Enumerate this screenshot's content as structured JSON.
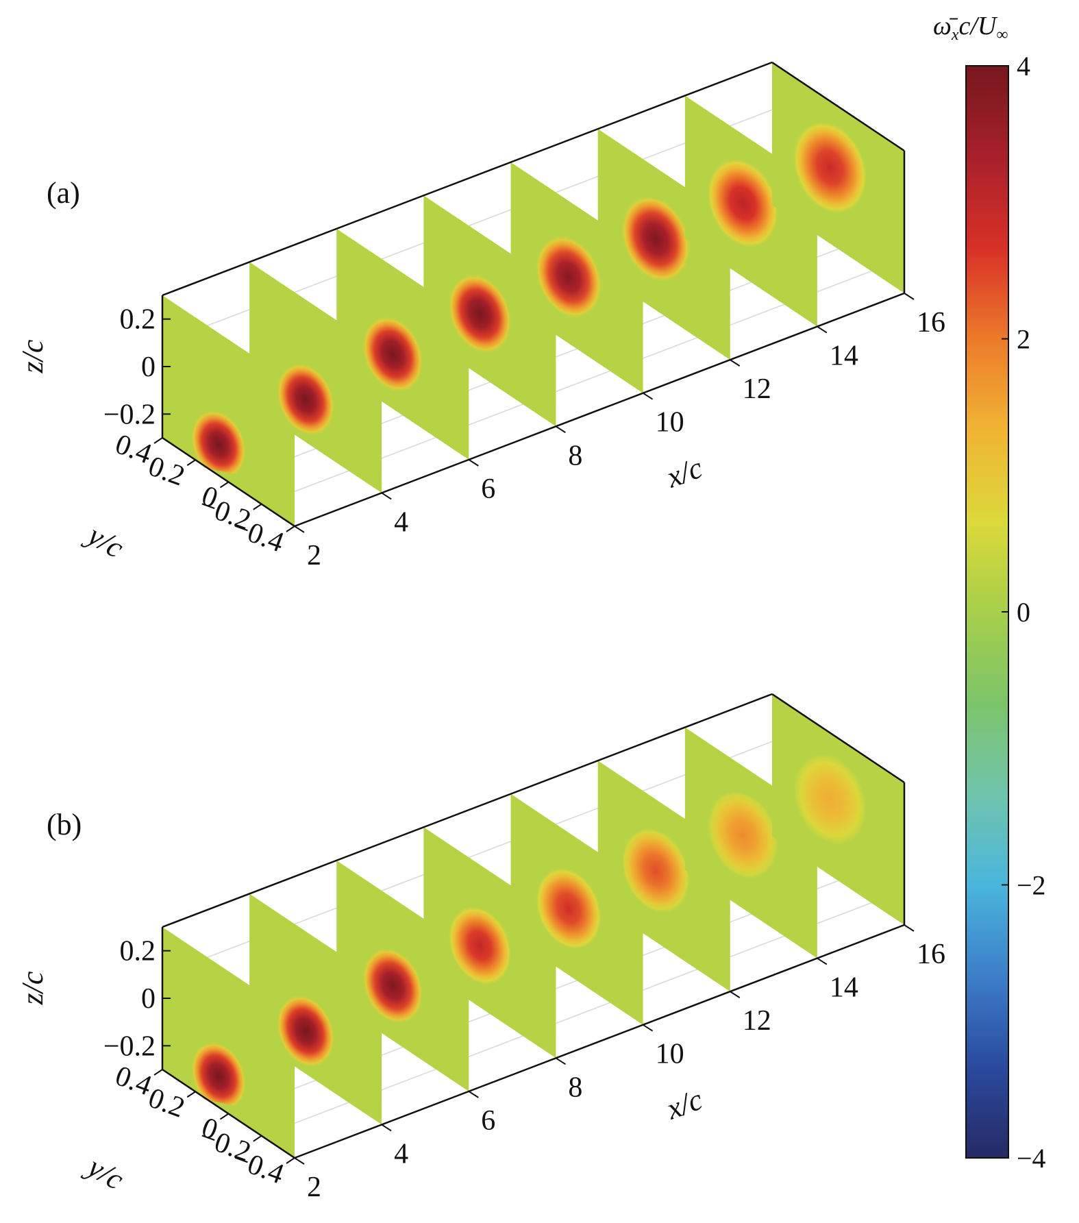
{
  "colorbar": {
    "label_main": "ω̄",
    "label_sub": "x",
    "label_rest": "c/U",
    "label_inf": "∞",
    "min": -4,
    "max": 4,
    "ticks": [
      "4",
      "2",
      "0",
      "−2",
      "−4"
    ],
    "tick_values": [
      4,
      2,
      0,
      -2,
      -4
    ],
    "colormap": [
      "#262a64",
      "#2a4a9e",
      "#3d7ec8",
      "#4ab6dc",
      "#70c4ac",
      "#7cc46a",
      "#a6cf4a",
      "#dcd83a",
      "#f0b434",
      "#ec7a2a",
      "#d83028",
      "#a8202a",
      "#76181e"
    ]
  },
  "chart_data": [
    {
      "type": "heatmap",
      "panel_label": "(a)",
      "xlabel": "x/c",
      "ylabel": "y/c",
      "zlabel": "z/c",
      "x_ticks": [
        "2",
        "4",
        "6",
        "8",
        "10",
        "12",
        "14",
        "16"
      ],
      "x_range": [
        2,
        16
      ],
      "y_ticks": [
        "0.4",
        "0.2",
        "0",
        "−0.2",
        "−0.4"
      ],
      "y_range": [
        -0.4,
        0.4
      ],
      "z_ticks": [
        "0.2",
        "0",
        "−0.2"
      ],
      "z_range": [
        -0.3,
        0.3
      ],
      "slices": [
        {
          "x": 2,
          "peak": 4.0,
          "vortex_y": 0.06,
          "vortex_z": -0.17
        },
        {
          "x": 4,
          "peak": 4.0,
          "vortex_y": 0.06,
          "vortex_z": -0.12
        },
        {
          "x": 6,
          "peak": 4.0,
          "vortex_y": 0.06,
          "vortex_z": -0.07
        },
        {
          "x": 8,
          "peak": 4.0,
          "vortex_y": 0.06,
          "vortex_z": -0.04
        },
        {
          "x": 10,
          "peak": 3.8,
          "vortex_y": 0.05,
          "vortex_z": -0.02
        },
        {
          "x": 12,
          "peak": 3.9,
          "vortex_y": 0.05,
          "vortex_z": 0.0
        },
        {
          "x": 14,
          "peak": 3.1,
          "vortex_y": 0.05,
          "vortex_z": 0.01
        },
        {
          "x": 16,
          "peak": 2.9,
          "vortex_y": 0.05,
          "vortex_z": 0.02
        }
      ]
    },
    {
      "type": "heatmap",
      "panel_label": "(b)",
      "xlabel": "x/c",
      "ylabel": "y/c",
      "zlabel": "z/c",
      "x_ticks": [
        "2",
        "4",
        "6",
        "8",
        "10",
        "12",
        "14",
        "16"
      ],
      "x_range": [
        2,
        16
      ],
      "y_ticks": [
        "0.4",
        "0.2",
        "0",
        "−0.2",
        "−0.4"
      ],
      "y_range": [
        -0.4,
        0.4
      ],
      "z_ticks": [
        "0.2",
        "0",
        "−0.2"
      ],
      "z_range": [
        -0.3,
        0.3
      ],
      "slices": [
        {
          "x": 2,
          "peak": 4.0,
          "vortex_y": 0.06,
          "vortex_z": -0.17
        },
        {
          "x": 4,
          "peak": 4.0,
          "vortex_y": 0.06,
          "vortex_z": -0.12
        },
        {
          "x": 6,
          "peak": 3.9,
          "vortex_y": 0.06,
          "vortex_z": -0.07
        },
        {
          "x": 8,
          "peak": 3.0,
          "vortex_y": 0.06,
          "vortex_z": -0.04
        },
        {
          "x": 10,
          "peak": 2.8,
          "vortex_y": 0.05,
          "vortex_z": -0.02
        },
        {
          "x": 12,
          "peak": 2.4,
          "vortex_y": 0.05,
          "vortex_z": 0.0
        },
        {
          "x": 14,
          "peak": 1.8,
          "vortex_y": 0.05,
          "vortex_z": 0.01
        },
        {
          "x": 16,
          "peak": 1.4,
          "vortex_y": 0.05,
          "vortex_z": 0.02
        }
      ]
    }
  ]
}
